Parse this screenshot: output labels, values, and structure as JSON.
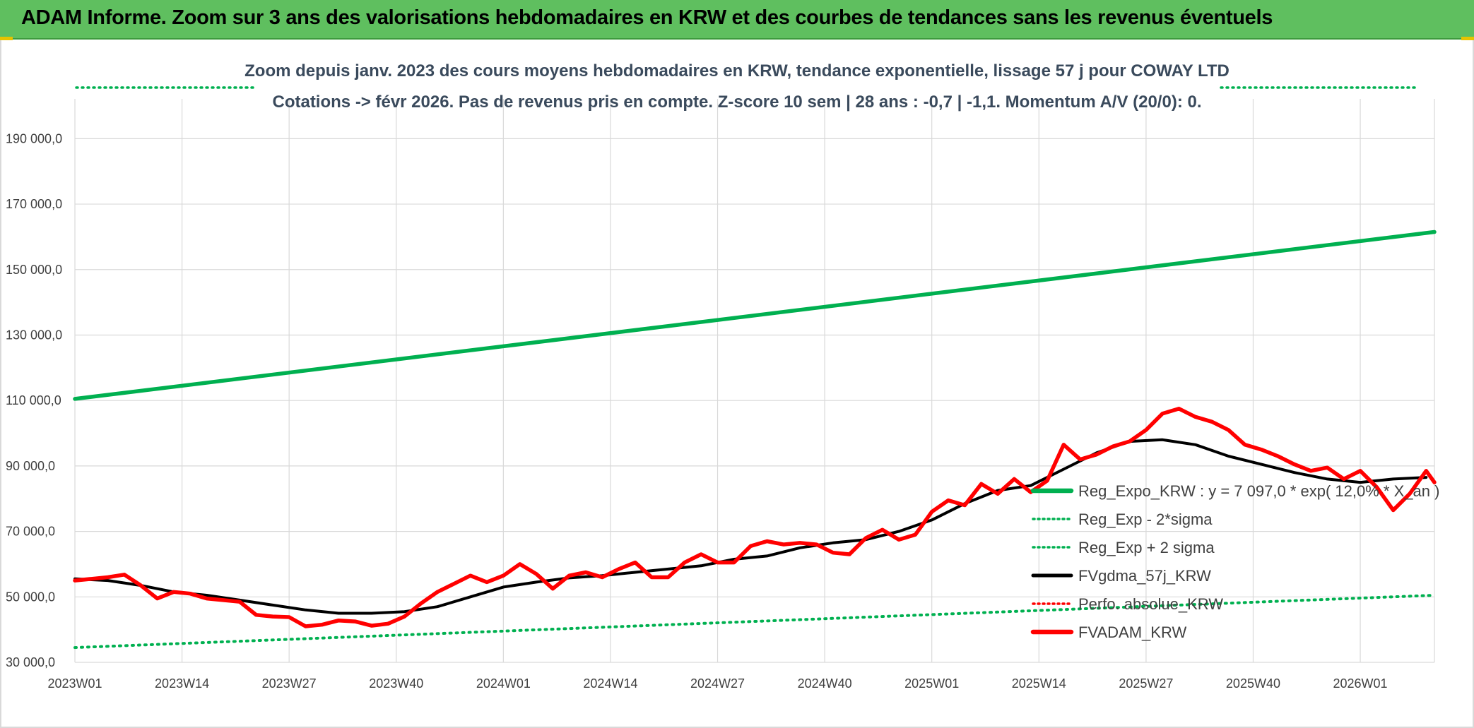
{
  "header": {
    "title": "ADAM Informe. Zoom sur 3 ans des valorisations hebdomadaires en KRW et des courbes de tendances sans les revenus éventuels"
  },
  "colors": {
    "banner": "#5fbf5f",
    "trend": "#00b050",
    "band": "#00b050",
    "smooth": "#000000",
    "adam": "#ff0000",
    "perfo": "#ff0000"
  },
  "chart_data": {
    "type": "line",
    "subtitle_line1": "Zoom depuis janv. 2023 des cours moyens hebdomadaires en KRW, tendance exponentielle, lissage 57 j pour COWAY LTD",
    "subtitle_line2": "Cotations -> févr 2026. Pas de revenus pris en compte. Z-score 10 sem | 28 ans : -0,7 | -1,1. Momentum A/V (20/0): 0.",
    "x_ticks": [
      "2023W01",
      "2023W14",
      "2023W27",
      "2023W40",
      "2024W01",
      "2024W14",
      "2024W27",
      "2024W40",
      "2025W01",
      "2025W14",
      "2025W27",
      "2025W40",
      "2026W01"
    ],
    "y_ticks": [
      "30 000,0",
      "50 000,0",
      "70 000,0",
      "90 000,0",
      "110 000,0",
      "130 000,0",
      "150 000,0",
      "170 000,0",
      "190 000,0"
    ],
    "ylim": [
      30000,
      200000
    ],
    "week_range": [
      0,
      165
    ],
    "grid": true,
    "legend_position": "bottom-right",
    "series": [
      {
        "name": "Reg_Expo_KRW : y = 7 097,0 * exp( 12,0% * X_an )",
        "style": "solid-thick",
        "color": "#00b050",
        "x": [
          0,
          165
        ],
        "values": [
          110500,
          161500
        ]
      },
      {
        "name": "Reg_Exp - 2*sigma",
        "style": "dotted",
        "color": "#00b050",
        "x": [
          0,
          165
        ],
        "values": [
          34500,
          50500
        ]
      },
      {
        "name": "Reg_Exp + 2 sigma",
        "style": "dotted",
        "color": "#00b050",
        "x": [
          0,
          165
        ],
        "values": [
          null,
          null
        ]
      },
      {
        "name": "FVgdma_57j_KRW",
        "style": "solid",
        "color": "#000000",
        "x": [
          0,
          4,
          8,
          12,
          16,
          20,
          24,
          28,
          32,
          36,
          40,
          44,
          48,
          52,
          56,
          60,
          64,
          68,
          72,
          76,
          80,
          84,
          88,
          92,
          96,
          100,
          104,
          108,
          112,
          116,
          120,
          124,
          128,
          132,
          136,
          140,
          144,
          148,
          152,
          156,
          160,
          164
        ],
        "values": [
          55500,
          55000,
          53500,
          51500,
          50500,
          49000,
          47500,
          46000,
          45000,
          45000,
          45500,
          47000,
          50000,
          53000,
          54500,
          55800,
          56500,
          57500,
          58500,
          59500,
          61500,
          62500,
          65000,
          66500,
          67500,
          70000,
          73500,
          78500,
          82500,
          84000,
          89000,
          94000,
          97500,
          98000,
          96500,
          93000,
          90500,
          88000,
          86000,
          85000,
          86000,
          86500
        ]
      },
      {
        "name": "Perfo. absolue_KRW",
        "style": "dotted",
        "color": "#ff0000",
        "x": [],
        "values": []
      },
      {
        "name": "FVADAM_KRW",
        "style": "solid-thick",
        "color": "#ff0000",
        "x": [
          0,
          2,
          4,
          6,
          8,
          10,
          12,
          14,
          16,
          18,
          20,
          22,
          24,
          26,
          28,
          30,
          32,
          34,
          36,
          38,
          40,
          42,
          44,
          46,
          48,
          50,
          52,
          54,
          56,
          58,
          60,
          62,
          64,
          66,
          68,
          70,
          72,
          74,
          76,
          78,
          80,
          82,
          84,
          86,
          88,
          90,
          92,
          94,
          96,
          98,
          100,
          102,
          104,
          106,
          108,
          110,
          112,
          114,
          116,
          118,
          120,
          122,
          124,
          126,
          128,
          130,
          132,
          134,
          136,
          138,
          140,
          142,
          144,
          146,
          148,
          150,
          152,
          154,
          156,
          158,
          160,
          162,
          164,
          165
        ],
        "values": [
          55000,
          55500,
          56000,
          56800,
          53500,
          49500,
          51500,
          51000,
          49500,
          49000,
          48500,
          44500,
          44000,
          43800,
          41000,
          41500,
          42800,
          42500,
          41200,
          41800,
          44000,
          48000,
          51500,
          54000,
          56500,
          54500,
          56500,
          60000,
          57000,
          52500,
          56500,
          57500,
          56000,
          58500,
          60500,
          56000,
          56000,
          60500,
          63000,
          60500,
          60500,
          65500,
          67000,
          66000,
          66500,
          66000,
          63500,
          63000,
          68000,
          70500,
          67500,
          69000,
          76000,
          79500,
          78000,
          84500,
          81500,
          86000,
          82000,
          85500,
          96500,
          92000,
          93500,
          96000,
          97500,
          101000,
          106000,
          107500,
          105000,
          103500,
          101000,
          96500,
          95000,
          93000,
          90500,
          88500,
          89500,
          86000,
          88500,
          83500,
          76500,
          81500,
          88500,
          85000
        ]
      }
    ]
  }
}
